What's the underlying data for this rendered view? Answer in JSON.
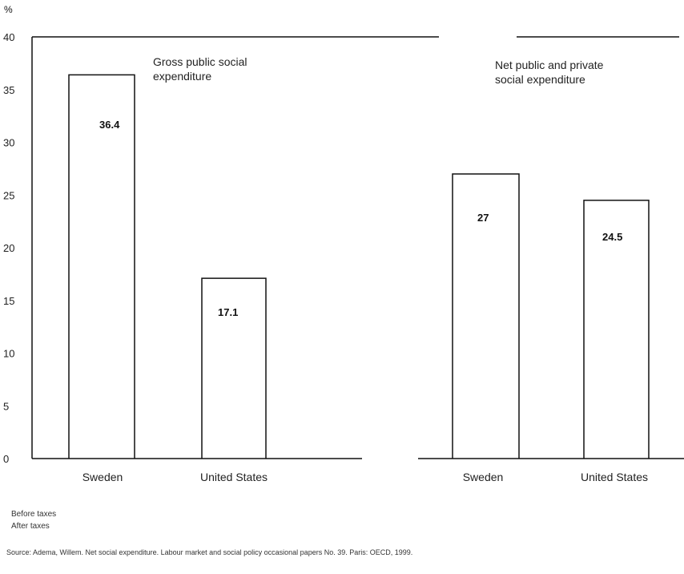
{
  "chart_data": {
    "type": "bar",
    "y_unit": "%",
    "ylim": [
      0,
      40
    ],
    "y_ticks": [
      0,
      5,
      10,
      15,
      20,
      25,
      30,
      35,
      40
    ],
    "grid": false,
    "panels": [
      {
        "title": "Gross public social\nexpenditure",
        "categories": [
          "Sweden",
          "United States"
        ],
        "values": [
          36.4,
          17.1
        ],
        "value_labels": [
          "36.4",
          "17.1"
        ]
      },
      {
        "title": "Net public and private\nsocial expenditure",
        "categories": [
          "Sweden",
          "United States"
        ],
        "values": [
          27,
          24.5
        ],
        "value_labels": [
          "27",
          "24.5"
        ]
      }
    ]
  },
  "notes": [
    "Before taxes",
    "After taxes"
  ],
  "source": "Source: Adema, Willem. Net social expenditure. Labour market and social policy occasional papers No. 39. Paris: OECD, 1999."
}
